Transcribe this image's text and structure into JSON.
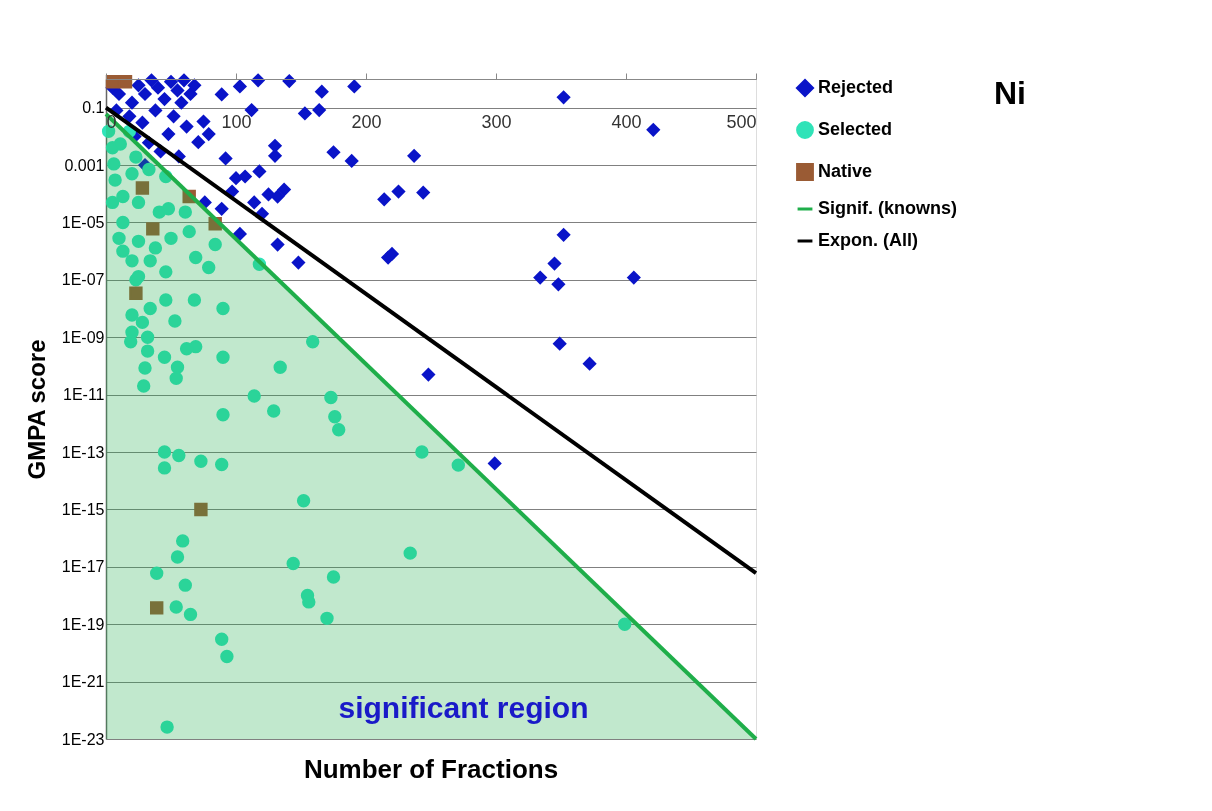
{
  "chart_data": {
    "type": "scatter",
    "xlabel": "Number of Fractions",
    "ylabel": "GMPA score",
    "xlim": [
      0,
      500
    ],
    "xticks": [
      0,
      100,
      200,
      300,
      400,
      500
    ],
    "ylim": [
      1e-23,
      1
    ],
    "yticks": [
      {
        "value": 1,
        "label": null
      },
      {
        "value": 0.1,
        "label": "0.1"
      },
      {
        "value": 0.001,
        "label": "0.001"
      },
      {
        "value": 1e-05,
        "label": "1E-05"
      },
      {
        "value": 1e-07,
        "label": "1E-07"
      },
      {
        "value": 1e-09,
        "label": "1E-09"
      },
      {
        "value": 1e-11,
        "label": "1E-11"
      },
      {
        "value": 1e-13,
        "label": "1E-13"
      },
      {
        "value": 1e-15,
        "label": "1E-15"
      },
      {
        "value": 1e-17,
        "label": "1E-17"
      },
      {
        "value": 1e-19,
        "label": "1E-19"
      },
      {
        "value": 1e-21,
        "label": "1E-21"
      },
      {
        "value": 1e-23,
        "label": "1E-23"
      }
    ],
    "log": "y",
    "grid": "y",
    "legend": "right",
    "annotations": [
      "Ni",
      "significant region"
    ],
    "series": [
      {
        "name": "Rejected",
        "marker": "diamond",
        "color": "#0a14c8",
        "x": [
          117,
          141,
          103,
          166,
          191,
          89,
          112,
          153,
          164,
          130,
          130,
          175,
          189,
          237,
          92,
          62,
          75,
          79,
          71,
          56,
          100,
          118,
          107,
          125,
          137,
          132,
          114,
          120,
          97,
          89,
          76,
          103,
          132,
          148,
          214,
          225,
          244,
          217,
          220,
          352,
          421,
          352,
          345,
          334,
          348,
          406,
          349,
          372,
          248,
          299,
          5,
          10,
          20,
          25,
          30,
          35,
          40,
          45,
          50,
          8,
          18,
          28,
          38,
          48,
          55,
          60,
          65,
          22,
          33,
          42,
          52,
          58,
          68,
          30
        ],
        "values": [
          0.9,
          0.85,
          0.55,
          0.36,
          0.55,
          0.29,
          0.083,
          0.063,
          0.083,
          0.0047,
          0.0021,
          0.0028,
          0.0014,
          0.0021,
          0.0017,
          0.022,
          0.033,
          0.012,
          0.0063,
          0.002,
          0.00035,
          0.0006,
          0.0004,
          9.5e-05,
          0.00014,
          8e-05,
          5e-05,
          2e-05,
          0.00012,
          3e-05,
          5e-05,
          4e-06,
          1.7e-06,
          4e-07,
          6.4e-05,
          0.00012,
          0.00011,
          6e-07,
          8e-07,
          0.23,
          0.017,
          3.7e-06,
          3.7e-07,
          1.2e-07,
          7e-08,
          1.2e-07,
          6e-10,
          1.2e-10,
          5e-11,
          4e-14,
          0.5,
          0.3,
          0.15,
          0.6,
          0.3,
          0.9,
          0.5,
          0.2,
          0.8,
          0.08,
          0.05,
          0.03,
          0.08,
          0.012,
          0.4,
          0.9,
          0.3,
          0.01,
          0.006,
          0.003,
          0.05,
          0.15,
          0.6,
          0.001
        ]
      },
      {
        "name": "Selected",
        "marker": "circle",
        "color": "#30e3b8",
        "x": [
          23,
          46,
          68,
          90,
          34,
          53,
          20,
          28,
          20,
          19,
          32,
          69,
          62,
          45,
          32,
          90,
          159,
          134,
          55,
          30,
          54,
          29,
          114,
          129,
          90,
          173,
          176,
          179,
          243,
          45,
          56,
          45,
          73,
          89,
          152,
          271,
          59,
          55,
          39,
          61,
          54,
          65,
          89,
          93,
          234,
          144,
          175,
          155,
          156,
          170,
          47,
          399,
          5,
          6,
          23,
          7,
          20,
          2,
          18,
          11,
          33,
          46,
          13,
          25,
          41,
          48,
          61,
          13,
          10,
          25,
          38,
          50,
          64,
          84,
          13,
          20,
          34,
          46,
          25,
          69,
          79,
          118,
          5
        ],
        "values": [
          1e-07,
          2e-08,
          2e-08,
          1e-08,
          1e-08,
          3.7e-09,
          6e-09,
          3.3e-09,
          1.5e-09,
          7e-10,
          1e-09,
          4.7e-10,
          4e-10,
          2e-10,
          3.3e-10,
          2e-10,
          7e-10,
          9e-11,
          9e-11,
          8.5e-11,
          3.7e-11,
          2e-11,
          9e-12,
          2.7e-12,
          2e-12,
          8e-12,
          1.7e-12,
          6e-13,
          1e-13,
          1e-13,
          7.6e-14,
          2.8e-14,
          4.8e-14,
          3.7e-14,
          2e-15,
          3.5e-14,
          8e-17,
          2.2e-17,
          6e-18,
          2.3e-18,
          4e-19,
          2.2e-19,
          3e-20,
          7.5e-21,
          3e-17,
          1.3e-17,
          4.4e-18,
          1e-18,
          6e-19,
          1.6e-19,
          2.6e-23,
          1e-19,
          0.004,
          0.0011,
          0.0019,
          0.0003,
          0.0005,
          0.015,
          0.015,
          0.0054,
          0.0007,
          0.0004,
          8e-05,
          5e-05,
          2.3e-05,
          3e-05,
          2.3e-05,
          1e-05,
          2.8e-06,
          2.2e-06,
          1.3e-06,
          2.8e-06,
          4.8e-06,
          1.7e-06,
          1e-06,
          4.6e-07,
          4.6e-07,
          1.9e-07,
          1.3e-07,
          6e-07,
          2.7e-07,
          3.5e-07,
          5e-05
        ]
      },
      {
        "name": "Native",
        "marker": "square",
        "color": "#9a5b34",
        "x": [
          5,
          15,
          28,
          64,
          84,
          36,
          23,
          73,
          39
        ],
        "values": [
          0.8,
          0.8,
          0.00016,
          8e-05,
          9e-06,
          6e-06,
          3.4e-08,
          1e-15,
          3.7e-19
        ]
      },
      {
        "name": "Signif. (knowns)",
        "type": "area",
        "marker": "none",
        "color": "#1fae4a",
        "x": [
          0,
          500
        ],
        "values": [
          0.06,
          1e-23
        ]
      },
      {
        "name": "Expon. (All)",
        "type": "line",
        "marker": "none",
        "color": "#000000",
        "x": [
          0,
          500
        ],
        "values": [
          0.1,
          6e-18
        ]
      }
    ]
  }
}
